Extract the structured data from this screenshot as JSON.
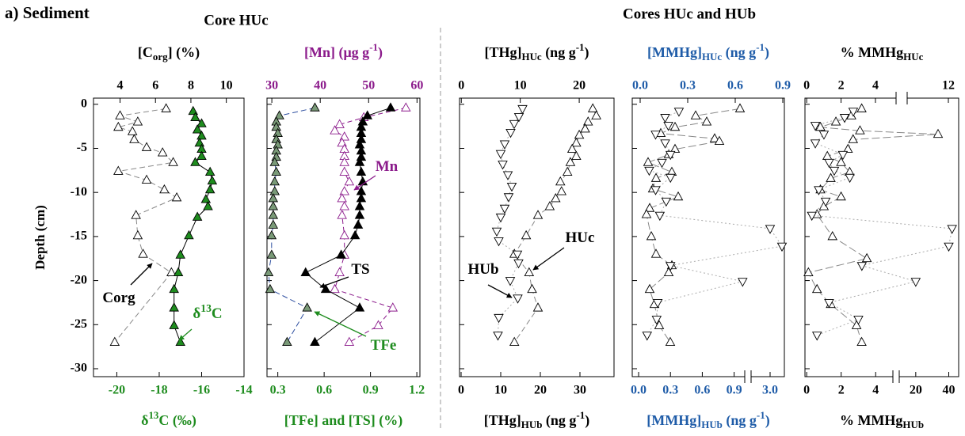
{
  "figure": {
    "label": "a) Sediment",
    "headers": [
      "Core HUc",
      "Cores HUc and HUb"
    ]
  },
  "chart_data": [
    {
      "type": "profile",
      "ylabel": "Depth (cm)",
      "ylim": [
        -30.9,
        0.7
      ],
      "yticks": [
        0,
        -5,
        -10,
        -15,
        -20,
        -25,
        -30
      ],
      "top": {
        "label": [
          {
            "text": "[C"
          },
          {
            "text": "org",
            "sub": true
          },
          {
            "text": "] (%)"
          }
        ],
        "color": "#000000",
        "xlim": [
          2.5,
          11
        ],
        "xticks": [
          4,
          6,
          8,
          10
        ]
      },
      "bottom": {
        "label": [
          {
            "text": "δ"
          },
          {
            "text": "13",
            "sup": true
          },
          {
            "text": "C (‰)"
          }
        ],
        "color": "#1e8c1e",
        "xlim": [
          -21.1,
          -14
        ],
        "xticks": [
          -20,
          -18,
          -16,
          -14
        ]
      },
      "series": [
        {
          "axis": "top",
          "marker": "up",
          "fill": "#ffffff",
          "line_color": "#888888",
          "dash": "7,4",
          "depth": [
            -0.5,
            -1.3,
            -2.0,
            -2.6,
            -3.1,
            -4.0,
            -4.9,
            -5.5,
            -6.6,
            -7.6,
            -8.6,
            -9.7,
            -10.6,
            -12.6,
            -14.9,
            -17.0,
            -19.1,
            -27.0
          ],
          "values": [
            6.6,
            4.0,
            5.0,
            3.9,
            4.7,
            4.8,
            5.5,
            6.4,
            7.0,
            3.9,
            5.5,
            6.5,
            7.2,
            4.9,
            5.0,
            5.3,
            6.9,
            3.7
          ]
        },
        {
          "axis": "bottom",
          "marker": "up",
          "fill": "#1e8c1e",
          "line_color": "#000000",
          "dash": null,
          "depth": [
            -0.8,
            -1.5,
            -2.2,
            -2.9,
            -3.6,
            -4.4,
            -5.1,
            -5.9,
            -6.6,
            -7.7,
            -8.7,
            -9.7,
            -10.8,
            -11.6,
            -12.8,
            -14.9,
            -17.1,
            -19.1,
            -21.0,
            -23.1,
            -25.1,
            -27.0
          ],
          "values": [
            -16.4,
            -16.3,
            -16.0,
            -16.2,
            -16.0,
            -16.1,
            -16.0,
            -16.0,
            -16.3,
            -15.6,
            -15.5,
            -15.6,
            -15.8,
            -15.7,
            -16.2,
            -16.6,
            -17.0,
            -17.1,
            -17.3,
            -17.3,
            -17.3,
            -17.0
          ]
        }
      ],
      "annotations": [
        {
          "label": [
            {
              "text": "Corg"
            }
          ],
          "color": "#000000"
        },
        {
          "label": [
            {
              "text": "δ"
            },
            {
              "text": "13",
              "sup": true
            },
            {
              "text": "C"
            }
          ],
          "color": "#1e8c1e"
        }
      ]
    },
    {
      "type": "profile",
      "top": {
        "label": [
          {
            "text": "[Mn] (μg g"
          },
          {
            "text": "-1",
            "sup": true
          },
          {
            "text": ")"
          }
        ],
        "color": "#8b1a8b",
        "xlim": [
          29,
          60.6
        ],
        "xticks": [
          30,
          40,
          50,
          60
        ]
      },
      "bottom": {
        "label": [
          {
            "text": "[TFe] and [TS] (%)"
          }
        ],
        "color": "#1e8c1e",
        "xlim": [
          0.23,
          1.22
        ],
        "xticks": [
          0.3,
          0.6,
          0.9,
          1.2
        ]
      },
      "series": [
        {
          "axis": "top",
          "marker": "up",
          "fill": "#ffffff",
          "stroke": "#8b1a8b",
          "line_color": "#8b1a8b",
          "dash": "6,4",
          "depth": [
            -0.4,
            -1.5,
            -2.3,
            -3.0,
            -3.7,
            -4.4,
            -5.1,
            -5.9,
            -6.6,
            -7.7,
            -8.8,
            -9.9,
            -10.7,
            -11.6,
            -12.6,
            -14.9,
            -17.1,
            -19.1,
            -21.0,
            -23.1,
            -25.1,
            -27.0
          ],
          "values": [
            57.7,
            49.0,
            44.0,
            43.0,
            45.0,
            44.5,
            45.0,
            45.0,
            45.0,
            45.0,
            46.0,
            45.0,
            44.5,
            45.0,
            44.5,
            45.0,
            45.0,
            44.0,
            43.0,
            55.0,
            52.0,
            46.0
          ]
        },
        {
          "axis": "bottom",
          "marker": "up",
          "fill": "#7a9a78",
          "line_color": "#2e4fa0",
          "dash": "7,4",
          "depth": [
            -0.4,
            -1.3,
            -2.0,
            -2.6,
            -3.3,
            -4.0,
            -4.6,
            -5.3,
            -6.0,
            -6.6,
            -7.7,
            -8.8,
            -9.9,
            -10.7,
            -11.6,
            -12.6,
            -13.7,
            -14.9,
            -17.1,
            -19.1,
            -21.0,
            -23.1,
            -27.0
          ],
          "values": [
            0.54,
            0.31,
            0.29,
            0.29,
            0.3,
            0.29,
            0.3,
            0.29,
            0.29,
            0.28,
            0.29,
            0.28,
            0.28,
            0.27,
            0.27,
            0.27,
            0.27,
            0.26,
            0.26,
            0.24,
            0.25,
            0.49,
            0.36
          ]
        },
        {
          "axis": "bottom",
          "marker": "up",
          "fill": "#000000",
          "line_color": "#000000",
          "dash": null,
          "depth": [
            -0.4,
            -1.3,
            -2.0,
            -2.6,
            -3.3,
            -4.0,
            -4.6,
            -5.3,
            -6.0,
            -6.6,
            -7.7,
            -8.8,
            -9.9,
            -10.7,
            -11.6,
            -12.6,
            -13.7,
            -14.9,
            -17.1,
            -19.1,
            -21.0,
            -23.1,
            -27.0
          ],
          "values": [
            1.03,
            0.88,
            0.85,
            0.84,
            0.84,
            0.84,
            0.83,
            0.84,
            0.84,
            0.83,
            0.84,
            0.85,
            0.84,
            0.84,
            0.83,
            0.83,
            0.82,
            0.8,
            0.71,
            0.48,
            0.61,
            0.83,
            0.54
          ]
        }
      ],
      "annotations": [
        {
          "label": [
            {
              "text": "Mn"
            }
          ],
          "color": "#8b1a8b"
        },
        {
          "label": [
            {
              "text": "TS"
            }
          ],
          "color": "#000000"
        },
        {
          "label": [
            {
              "text": "TFe"
            }
          ],
          "color": "#1e8c1e"
        }
      ]
    },
    {
      "type": "profile",
      "top": {
        "label": [
          {
            "text": "[THg]"
          },
          {
            "text": "HUc",
            "sub": true
          },
          {
            "text": " (ng g"
          },
          {
            "text": "-1",
            "sup": true
          },
          {
            "text": ")"
          }
        ],
        "color": "#000000",
        "xlim": [
          -0.3,
          25.9
        ],
        "xticks": [
          0,
          10,
          20
        ]
      },
      "bottom": {
        "label": [
          {
            "text": "[THg]"
          },
          {
            "text": "HUb",
            "sub": true
          },
          {
            "text": " (ng g"
          },
          {
            "text": "-1",
            "sup": true
          },
          {
            "text": ")"
          }
        ],
        "color": "#000000",
        "xlim": [
          -0.4,
          38.6
        ],
        "xticks": [
          0,
          10,
          20,
          30
        ]
      },
      "series": [
        {
          "axis": "top",
          "marker": "up",
          "fill": "#ffffff",
          "line_color": "#888888",
          "dash": "7,4",
          "depth": [
            -0.5,
            -1.3,
            -2.0,
            -2.8,
            -3.5,
            -4.4,
            -5.1,
            -5.9,
            -6.6,
            -7.7,
            -8.8,
            -9.9,
            -10.7,
            -11.6,
            -12.6,
            -14.9,
            -17.0,
            -19.1,
            -21.0,
            -23.1,
            -27.0
          ],
          "values": [
            22.3,
            22.9,
            21.5,
            21.0,
            20.0,
            19.5,
            18.8,
            19.5,
            18.5,
            18.0,
            16.8,
            17.0,
            16.0,
            15.0,
            13.0,
            11.0,
            9.0,
            11.5,
            12.0,
            13.0,
            9.0
          ]
        },
        {
          "axis": "bottom",
          "marker": "down",
          "fill": "#ffffff",
          "line_color": "#aaaaaa",
          "dash": "2,3",
          "depth": [
            -0.5,
            -1.4,
            -2.2,
            -3.2,
            -4.5,
            -5.6,
            -6.8,
            -8.0,
            -9.3,
            -10.5,
            -11.8,
            -12.8,
            -14.4,
            -15.5,
            -17.0,
            -18.0,
            -20.0,
            -22.0,
            -24.2,
            -26.2
          ],
          "values": [
            15.5,
            14.6,
            13.4,
            12.5,
            11.0,
            10.0,
            10.5,
            11.8,
            12.8,
            12.0,
            11.0,
            10.0,
            9.0,
            9.5,
            14.2,
            14.5,
            12.4,
            14.3,
            9.5,
            9.3
          ]
        }
      ],
      "annotations": [
        {
          "label": [
            {
              "text": "HUc"
            }
          ],
          "color": "#000000"
        },
        {
          "label": [
            {
              "text": "HUb"
            }
          ],
          "color": "#000000"
        }
      ]
    },
    {
      "type": "profile",
      "top": {
        "label": [
          {
            "text": "[MMHg]"
          },
          {
            "text": "HUc",
            "sub": true
          },
          {
            "text": " (ng g"
          },
          {
            "text": "-1",
            "sup": true
          },
          {
            "text": ")"
          }
        ],
        "color": "#1f5ca8",
        "xlim": [
          -0.05,
          0.91
        ],
        "xticks": [
          {
            "value": 0,
            "label": "0.0"
          },
          0.3,
          0.6,
          0.9
        ]
      },
      "bottom": {
        "label": [
          {
            "text": "[MMHg]"
          },
          {
            "text": "HUb",
            "sub": true
          },
          {
            "text": " (ng g"
          },
          {
            "text": "-1",
            "sup": true
          },
          {
            "text": ")"
          }
        ],
        "color": "#1f5ca8",
        "xlim": [
          -0.06,
          3.3
        ],
        "xbreak": [
          1.0,
          2.6
        ],
        "xticks": [
          {
            "value": 0,
            "label": "0.0"
          },
          0.3,
          0.6,
          0.9,
          {
            "value": 3,
            "label": "3.0"
          }
        ]
      },
      "series": [
        {
          "axis": "top",
          "marker": "up",
          "fill": "#ffffff",
          "line_color": "#888888",
          "dash": "10,4",
          "depth": [
            -0.5,
            -1.3,
            -2.0,
            -2.6,
            -3.3,
            -3.9,
            -4.2,
            -5.1,
            -5.7,
            -6.6,
            -7.7,
            -8.4,
            -9.6,
            -10.5,
            -11.8,
            -12.5,
            -15.0,
            -17.0,
            -18.3,
            -19.1,
            -21.0,
            -22.7,
            -25.1,
            -27.0
          ],
          "values": [
            0.63,
            0.35,
            0.42,
            0.22,
            0.13,
            0.47,
            0.5,
            0.22,
            0.18,
            0.05,
            0.2,
            0.1,
            0.08,
            0.24,
            0.06,
            0.04,
            0.07,
            0.1,
            0.2,
            0.18,
            0.06,
            0.09,
            0.12,
            0.19
          ]
        },
        {
          "axis": "bottom",
          "marker": "down",
          "fill": "#ffffff",
          "line_color": "#aaaaaa",
          "dash": "2,3",
          "depth": [
            -0.8,
            -1.5,
            -2.4,
            -3.4,
            -4.4,
            -5.7,
            -6.6,
            -7.5,
            -8.3,
            -9.7,
            -11.0,
            -12.6,
            -14.1,
            -16.1,
            -18.3,
            -20.1,
            -22.5,
            -24.4,
            -26.2
          ],
          "values": [
            0.38,
            0.25,
            0.28,
            0.16,
            0.25,
            0.3,
            0.22,
            0.1,
            0.3,
            0.16,
            0.26,
            0.2,
            3.0,
            3.25,
            0.3,
            0.98,
            0.18,
            0.17,
            0.08
          ]
        }
      ]
    },
    {
      "type": "profile",
      "top": {
        "label": [
          {
            "text": "% MMHg"
          },
          {
            "text": "HUc",
            "sub": true
          }
        ],
        "color": "#000000",
        "xlim": [
          -0.1,
          12.5
        ],
        "xbreak": [
          5.2,
          10
        ],
        "xticks": [
          0,
          2,
          4,
          12
        ]
      },
      "bottom": {
        "label": [
          {
            "text": "% MMHg"
          },
          {
            "text": "HUb",
            "sub": true
          }
        ],
        "color": "#000000",
        "xlim": [
          -0.1,
          46
        ],
        "xbreak": [
          5,
          10
        ],
        "xticks": [
          0,
          2,
          4,
          20,
          40
        ]
      },
      "series": [
        {
          "axis": "top",
          "marker": "up",
          "fill": "#ffffff",
          "line_color": "#888888",
          "dash": "10,4",
          "depth": [
            -0.5,
            -1.3,
            -2.0,
            -2.6,
            -3.0,
            -3.4,
            -4.0,
            -5.1,
            -5.9,
            -6.6,
            -7.7,
            -8.4,
            -9.7,
            -10.5,
            -11.6,
            -12.5,
            -15.0,
            -17.5,
            -19.1,
            -21.0,
            -22.7,
            -25.1,
            -27.0
          ],
          "values": [
            3.2,
            2.6,
            1.7,
            0.8,
            3.1,
            11.5,
            2.7,
            2.4,
            1.2,
            2.0,
            2.5,
            1.4,
            0.8,
            2.0,
            1.0,
            0.6,
            1.5,
            3.5,
            0.1,
            0.6,
            1.4,
            2.9,
            3.2
          ]
        },
        {
          "axis": "bottom",
          "marker": "down",
          "fill": "#ffffff",
          "line_color": "#aaaaaa",
          "dash": "2,3",
          "depth": [
            -0.8,
            -1.5,
            -2.4,
            -3.4,
            -4.4,
            -5.7,
            -6.6,
            -7.5,
            -8.3,
            -9.7,
            -11.0,
            -12.6,
            -14.1,
            -16.1,
            -18.3,
            -20.1,
            -22.5,
            -24.4,
            -26.2
          ],
          "values": [
            2.7,
            2.2,
            0.5,
            1.0,
            0.5,
            2.1,
            1.3,
            1.6,
            2.5,
            0.7,
            1.1,
            0.3,
            42,
            40,
            3.2,
            20,
            1.3,
            3.0,
            0.6
          ]
        }
      ]
    }
  ]
}
